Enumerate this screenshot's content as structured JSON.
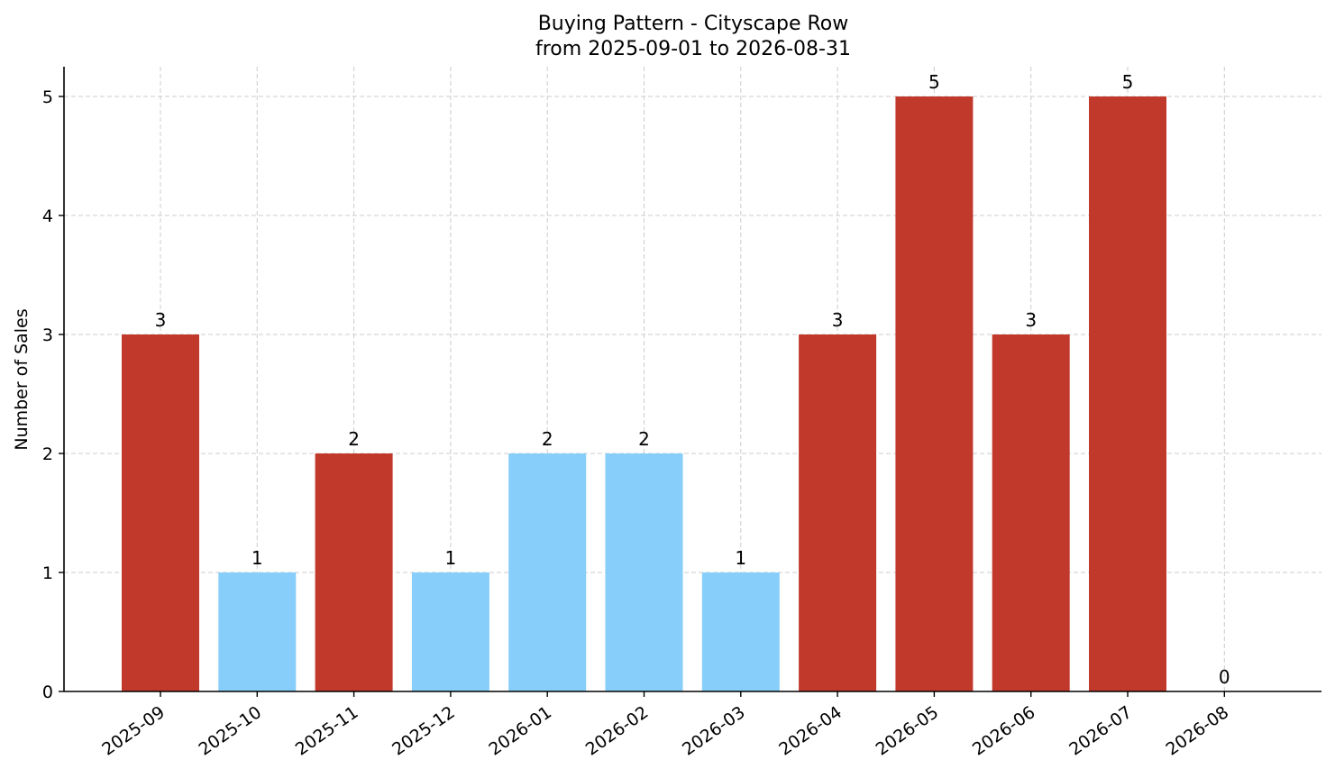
{
  "chart_data": {
    "type": "bar",
    "title": "Buying Pattern - Cityscape Row",
    "subtitle": "from 2025-09-01 to 2026-08-31",
    "xlabel": "",
    "ylabel": "Number of Sales",
    "categories": [
      "2025-09",
      "2025-10",
      "2025-11",
      "2025-12",
      "2026-01",
      "2026-02",
      "2026-03",
      "2026-04",
      "2026-05",
      "2026-06",
      "2026-07",
      "2026-08"
    ],
    "values": [
      3,
      1,
      2,
      1,
      2,
      2,
      1,
      3,
      5,
      3,
      5,
      0
    ],
    "bar_colors": [
      "#c0392b",
      "#87cefa",
      "#c0392b",
      "#87cefa",
      "#87cefa",
      "#87cefa",
      "#87cefa",
      "#c0392b",
      "#c0392b",
      "#c0392b",
      "#c0392b",
      "#87cefa"
    ],
    "ylim": [
      0,
      5.25
    ],
    "yticks": [
      0,
      1,
      2,
      3,
      4,
      5
    ],
    "grid": true,
    "legend": "none",
    "data_labels": true
  }
}
